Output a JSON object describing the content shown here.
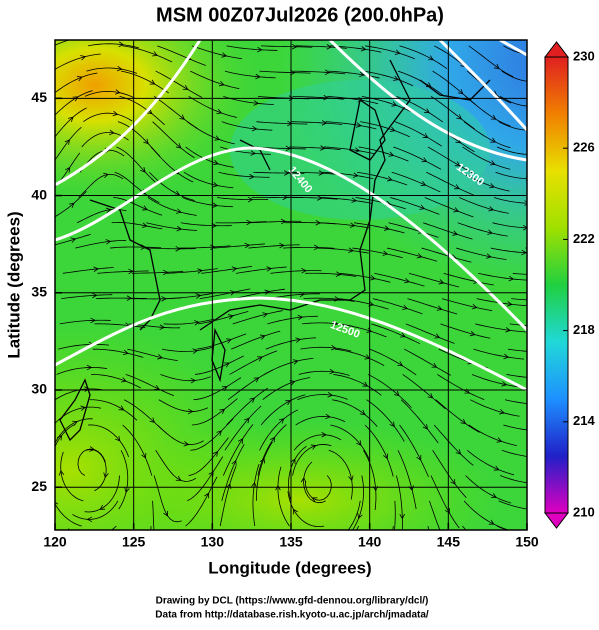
{
  "chart_data": {
    "type": "map",
    "title": "MSM 00Z07Jul2026 (200.0hPa)",
    "x_label": "Longitude (degrees)",
    "y_label": "Latitude  (degrees)",
    "xlim": [
      120,
      150
    ],
    "xticks": [
      120,
      125,
      130,
      135,
      140,
      145,
      150
    ],
    "ylim": [
      22.8,
      48
    ],
    "yticks": [
      25,
      30,
      35,
      40,
      45
    ],
    "grid": true,
    "colorbar": {
      "lim": [
        210,
        230
      ],
      "ticks": [
        210,
        214,
        218,
        222,
        226,
        230
      ],
      "colors": [
        "#e000c0",
        "#2020c8",
        "#1e90ff",
        "#20d8d8",
        "#20d040",
        "#a0e000",
        "#e8e000",
        "#f08000",
        "#e02020"
      ]
    },
    "contour_labels": [
      "12500",
      "12400",
      "12300"
    ],
    "footer": [
      "Drawing by DCL (https://www.gfd-dennou.org/library/dcl/)",
      "Data from http://database.rish.kyoto-u.ac.jp/arch/jmadata/"
    ]
  }
}
